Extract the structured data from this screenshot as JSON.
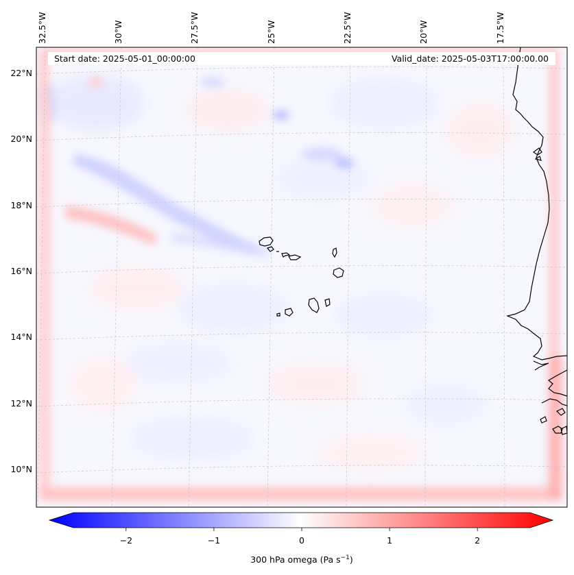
{
  "header": {
    "start_date": "Start date: 2025-05-01_00:00:00",
    "valid_date": "Valid_date: 2025-05-03T17:00:00.00"
  },
  "axes": {
    "lon_labels": [
      "32.5°W",
      "30°W",
      "27.5°W",
      "25°W",
      "22.5°W",
      "20°W",
      "17.5°W"
    ],
    "lat_labels": [
      "22°N",
      "20°N",
      "18°N",
      "16°N",
      "14°N",
      "12°N",
      "10°N"
    ]
  },
  "colorbar": {
    "label": "300 hPa omega (Pa s",
    "label_sup": "−1",
    "label_close": ")",
    "min": -2.6,
    "max": 2.6,
    "ticks": [
      -2,
      -1,
      0,
      1,
      2
    ],
    "tick_labels": [
      "−2",
      "−1",
      "0",
      "1",
      "2"
    ],
    "colors": {
      "negative": "#0000ff",
      "zero": "#ffffff",
      "positive": "#ff0000"
    }
  },
  "map": {
    "features": {
      "islands": "cabo-verde-islands",
      "coast": "west-africa-coastline"
    },
    "colors": {
      "coast": "#000000",
      "grid": "#bbbbbb",
      "frame": "#000000"
    }
  }
}
